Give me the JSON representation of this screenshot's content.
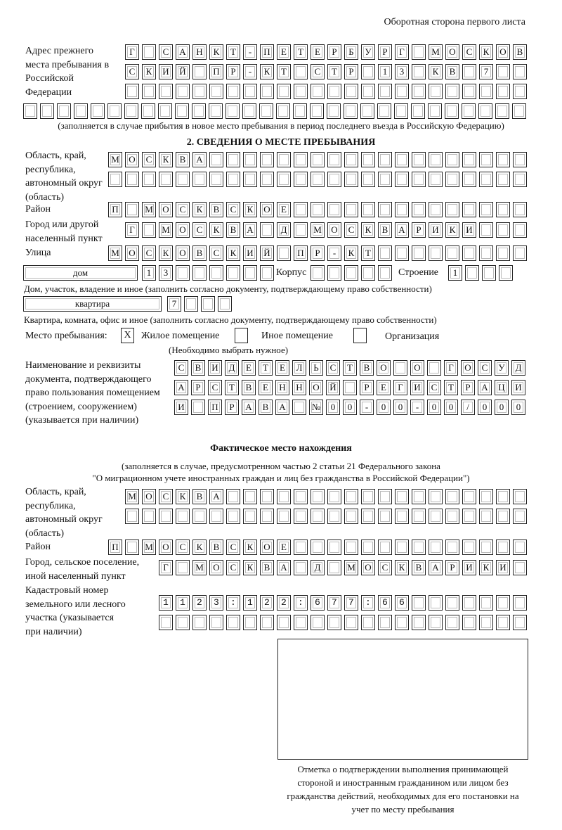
{
  "header": "Оборотная сторона первого листа",
  "prev_address": {
    "label": "Адрес прежнего места пребывания в Российской Федерации",
    "rows": [
      "Г САНКТ-ПЕТЕРБУРГ МОСКОВ",
      "СКИЙ ПР-КТ СТР 13 КВ 7",
      "",
      ""
    ],
    "note": "(заполняется в случае прибытия в новое место пребывания в период последнего въезда в Российскую Федерацию)"
  },
  "section2": {
    "title": "2. СВЕДЕНИЯ О МЕСТЕ ПРЕБЫВАНИЯ",
    "region_label": "Область, край, республика, автономный округ (область)",
    "region_rows": [
      "МОСКВА",
      ""
    ],
    "district_label": "Район",
    "district": "П МОСКВСКОЕ",
    "city_label": "Город или другой населенный пункт",
    "city": "Г МОСКВА Д МОСКВАРИКИ",
    "street_label": "Улица",
    "street": "МОСКОВСКИЙ ПР-КТ",
    "house_type": "дом",
    "house_number": "13",
    "korpus_label": "Корпус",
    "korpus": "",
    "stroenie_label": "Строение",
    "stroenie": "1",
    "house_note": "Дом, участок, владение и иное (заполнить согласно документу, подтверждающему право собственности)",
    "apt_type": "квартира",
    "apt_number": "7",
    "apt_note": "Квартира, комната, офис и иное (заполнить согласно документу, подтверждающему право собственности)",
    "stay_label": "Место пребывания:",
    "options": [
      {
        "label": "Жилое помещение",
        "checked": true,
        "mark": "X"
      },
      {
        "label": "Иное помещение",
        "checked": false
      },
      {
        "label": "Организация",
        "checked": false
      }
    ],
    "choose_note": "(Необходимо выбрать нужное)",
    "doc_label": "Наименование и реквизиты документа, подтверждающего право пользования помещением (строением, сооружением) (указывается при наличии)",
    "doc_rows": [
      "СВИДЕТЕЛЬСТВО О ГОСУД",
      "АРСТВЕННОЙ РЕГИСТРАЦИ",
      "И ПРАВА №00-00-00/000"
    ]
  },
  "actual": {
    "title": "Фактическое место нахождения",
    "note1": "(заполняется в случае, предусмотренном частью 2 статьи 21 Федерального закона",
    "note2": "\"О миграционном учете иностранных граждан и лиц без гражданства в Российской Федерации\")",
    "region_label": "Область, край, республика, автономный округ (область)",
    "region_rows": [
      "МОСКВА",
      ""
    ],
    "district_label": "Район",
    "district": "П МОСКВСКОЕ",
    "city_label": "Город, сельское поселение, иной населенный пункт",
    "city": "Г МОСКВА Д МОСКВАРИКИ",
    "cadastral_label": "Кадастровый номер земельного или лесного участка (указывается при наличии)",
    "cadastral_rows": [
      "1123:122:677:66",
      ""
    ]
  },
  "stamp_caption": "Отметка о подтверждении выполнения принимающей стороной и иностранным гражданином или лицом без гражданства действий, необходимых для его постановки на учет по месту пребывания"
}
